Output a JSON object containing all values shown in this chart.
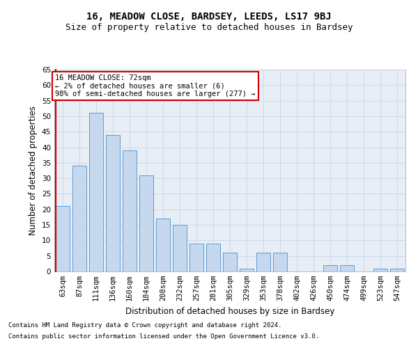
{
  "title": "16, MEADOW CLOSE, BARDSEY, LEEDS, LS17 9BJ",
  "subtitle": "Size of property relative to detached houses in Bardsey",
  "xlabel": "Distribution of detached houses by size in Bardsey",
  "ylabel": "Number of detached properties",
  "footnote1": "Contains HM Land Registry data © Crown copyright and database right 2024.",
  "footnote2": "Contains public sector information licensed under the Open Government Licence v3.0.",
  "categories": [
    "63sqm",
    "87sqm",
    "111sqm",
    "136sqm",
    "160sqm",
    "184sqm",
    "208sqm",
    "232sqm",
    "257sqm",
    "281sqm",
    "305sqm",
    "329sqm",
    "353sqm",
    "378sqm",
    "402sqm",
    "426sqm",
    "450sqm",
    "474sqm",
    "499sqm",
    "523sqm",
    "547sqm"
  ],
  "values": [
    21,
    34,
    51,
    44,
    39,
    31,
    17,
    15,
    9,
    9,
    6,
    1,
    6,
    6,
    0,
    0,
    2,
    2,
    0,
    1,
    1
  ],
  "bar_color": "#c5d8ed",
  "bar_edge_color": "#5b9bd5",
  "annotation_box_text": "16 MEADOW CLOSE: 72sqm\n← 2% of detached houses are smaller (6)\n98% of semi-detached houses are larger (277) →",
  "annotation_box_edge_color": "#cc0000",
  "annotation_box_bg": "#ffffff",
  "red_line_color": "#cc0000",
  "grid_color": "#c8d4e8",
  "background_color": "#e8eef6",
  "ylim": [
    0,
    65
  ],
  "yticks": [
    0,
    5,
    10,
    15,
    20,
    25,
    30,
    35,
    40,
    45,
    50,
    55,
    60,
    65
  ],
  "title_fontsize": 10,
  "subtitle_fontsize": 9,
  "xlabel_fontsize": 8.5,
  "ylabel_fontsize": 8.5,
  "tick_fontsize": 7.5,
  "annotation_fontsize": 7.5,
  "footnote_fontsize": 6.5
}
